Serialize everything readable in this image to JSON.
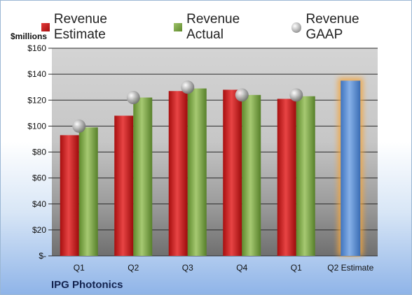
{
  "legend": {
    "estimate": "Revenue Estimate",
    "actual": "Revenue Actual",
    "gaap": "Revenue GAAP"
  },
  "unit_label": "$millions",
  "company": "IPG Photonics",
  "colors": {
    "estimate": "#c81e1e",
    "actual": "#7ba345",
    "gaap": "#b4b4b4",
    "forecast": "#5b8fd4",
    "forecast_glow": "#f4a63c"
  },
  "chart_data": {
    "type": "bar",
    "categories": [
      "Q1",
      "Q2",
      "Q3",
      "Q4",
      "Q1",
      "Q2 Estimate"
    ],
    "ylim": [
      0,
      160
    ],
    "yticks": [
      "$-",
      "$20",
      "$40",
      "$60",
      "$80",
      "$100",
      "$120",
      "$140",
      "$160"
    ],
    "ytick_values": [
      0,
      20,
      40,
      60,
      80,
      100,
      120,
      140,
      160
    ],
    "series": [
      {
        "name": "Revenue Estimate",
        "values": [
          93,
          108,
          127,
          128,
          121,
          null
        ]
      },
      {
        "name": "Revenue Actual",
        "values": [
          99,
          122,
          129,
          124,
          123,
          null
        ]
      },
      {
        "name": "Revenue GAAP",
        "values": [
          100,
          122,
          130,
          124,
          124,
          null
        ]
      }
    ],
    "forecast": {
      "category_index": 5,
      "value": 135
    },
    "grid": true,
    "legend_position": "top"
  }
}
